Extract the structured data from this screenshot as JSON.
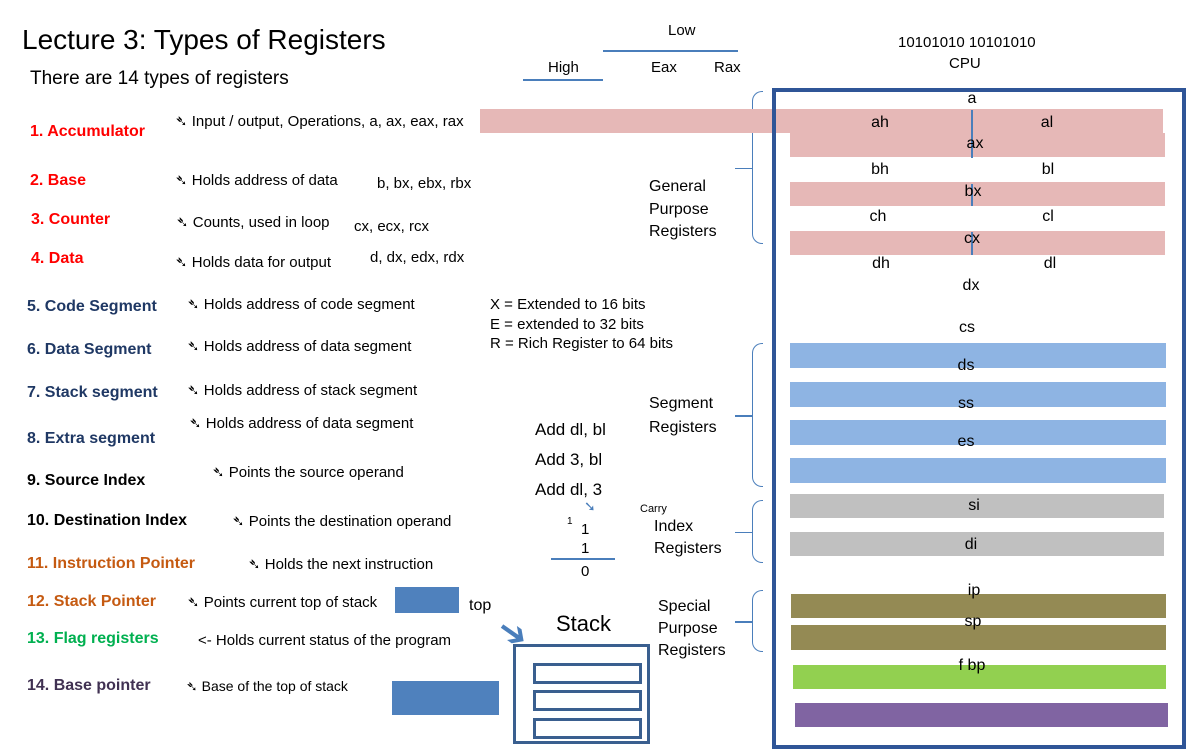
{
  "title": "Lecture 3: Types of Registers",
  "subtitle": "There are 14 types of registers",
  "registers": [
    {
      "name": "1. Accumulator",
      "desc": "Input / output, Operations, a, ax, eax, rax",
      "color": "#ff0000"
    },
    {
      "name": "2. Base",
      "desc": "Holds address of data",
      "extra": "b, bx, ebx, rbx",
      "color": "#ff0000"
    },
    {
      "name": "3. Counter",
      "desc": "Counts, used in loop",
      "extra": "cx, ecx, rcx",
      "color": "#ff0000"
    },
    {
      "name": "4. Data",
      "desc": "Holds data for output",
      "extra": "d, dx, edx, rdx",
      "color": "#ff0000"
    },
    {
      "name": "5. Code Segment",
      "desc": "Holds address of code segment",
      "color": "#1f3864"
    },
    {
      "name": "6. Data Segment",
      "desc": "Holds address of data segment",
      "color": "#1f3864"
    },
    {
      "name": "7. Stack segment",
      "desc": "Holds address of stack segment",
      "color": "#1f3864"
    },
    {
      "name": "8. Extra segment",
      "desc": "Holds address of data segment",
      "color": "#1f3864"
    },
    {
      "name": "9. Source Index",
      "desc": "Points  the source operand",
      "color": "#000000"
    },
    {
      "name": "10. Destination Index",
      "desc": "Points  the destination operand",
      "color": "#000000"
    },
    {
      "name": "11. Instruction Pointer",
      "desc": "Holds the next instruction",
      "color": "#c55a11"
    },
    {
      "name": "12. Stack Pointer",
      "desc": "Points current top of stack",
      "color": "#c55a11"
    },
    {
      "name": "13. Flag registers",
      "desc": "<- Holds current status of the  program",
      "color": "#00b050"
    },
    {
      "name": "14. Base pointer",
      "desc": "Base of the top of stack",
      "color": "#403152"
    }
  ],
  "notes": {
    "x": "X = Extended to 16 bits",
    "e": "E = extended to 32 bits",
    "r": "R = Rich Register to 64 bits"
  },
  "header": {
    "low": "Low",
    "high": "High",
    "eax": "Eax",
    "rax": "Rax",
    "bits": "10101010 10101010",
    "cpu": "CPU"
  },
  "groups": {
    "general": [
      "General",
      "Purpose",
      "Registers"
    ],
    "segment": [
      "Segment",
      "Registers"
    ],
    "index": [
      "Index",
      "Registers"
    ],
    "special": [
      "Special",
      "Purpose",
      "Registers"
    ]
  },
  "add": [
    "Add  dl, bl",
    "Add  3,  bl",
    "Add dl, 3"
  ],
  "carry": {
    "label": "Carry",
    "c": "1",
    "a": "1",
    "b": "1",
    "r": "0"
  },
  "stack": {
    "label": "Stack",
    "top": "top"
  },
  "cpu_labels": {
    "a": "a",
    "ah": "ah",
    "al": "al",
    "ax": "ax",
    "bh": "bh",
    "bl": "bl",
    "bx": "bx",
    "ch": "ch",
    "cl": "cl",
    "cx": "cx",
    "dh": "dh",
    "dl": "dl",
    "dx": "dx",
    "cs": "cs",
    "ds": "ds",
    "ss": "ss",
    "es": "es",
    "si": "si",
    "di": "di",
    "ip": "ip",
    "sp": "sp",
    "fbp": "f bp"
  },
  "colors": {
    "pink": "#e6b8b7",
    "blue": "#8eb4e3",
    "gray": "#c0c0c0",
    "olive": "#948a54",
    "green": "#92d050",
    "purple": "#8064a2",
    "frame": "#2f5597"
  }
}
